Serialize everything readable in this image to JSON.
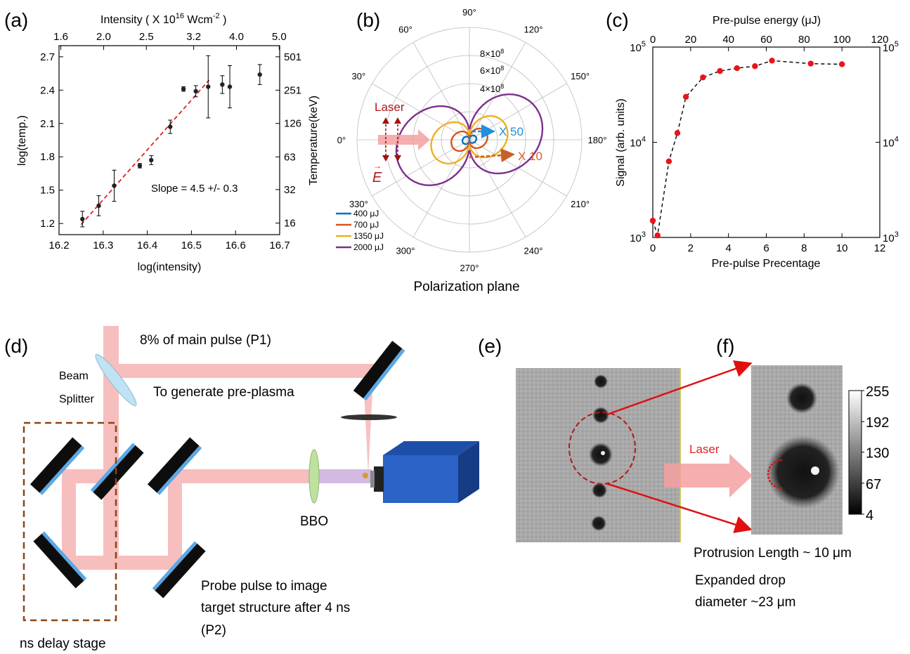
{
  "panels": {
    "a": {
      "label": "(a)",
      "top_title": "Intensity ( X 10",
      "top_title_exp": "16",
      "top_title_unit": " Wcm",
      "top_title_unit_exp": "-2",
      "top_title_close": " )",
      "xlabel": "log(intensity)",
      "ylabel": "log(temp.)",
      "right_ylabel": "Temperature(keV)",
      "annotation": "Slope = 4.5 +/- 0.3",
      "x_ticks": [
        "16.2",
        "16.3",
        "16.4",
        "16.5",
        "16.6",
        "16.7"
      ],
      "y_ticks": [
        "1.2",
        "1.5",
        "1.8",
        "2.1",
        "2.4",
        "2.7"
      ],
      "top_ticks": [
        "1.6",
        "2.0",
        "2.5",
        "3.2",
        "4.0",
        "5.0"
      ],
      "right_ticks": [
        "16",
        "32",
        "63",
        "126",
        "251",
        "501"
      ]
    },
    "b": {
      "label": "(b)",
      "caption": "Polarization plane",
      "angles": [
        "270°",
        "240°",
        "210°",
        "180°",
        "150°",
        "120°",
        "90°",
        "60°",
        "30°",
        "0°",
        "330°",
        "300°"
      ],
      "radial_labels": [
        "8×10",
        "6×10",
        "4×10"
      ],
      "radial_exp": "8",
      "laser_label": "Laser",
      "efield_label": "E",
      "x50": "X 50",
      "x10": "X 10",
      "legend": [
        "400 μJ",
        "700 μJ",
        "1350 μJ",
        "2000 μJ"
      ],
      "colors": [
        "#0072bd",
        "#d95319",
        "#edb120",
        "#7e2f8e"
      ]
    },
    "c": {
      "label": "(c)",
      "top_title": "Pre-pulse energy (μJ)",
      "xlabel": "Pre-pulse Precentage",
      "ylabel": "Signal (arb. units)",
      "x_ticks": [
        "0",
        "2",
        "4",
        "6",
        "8",
        "10",
        "12"
      ],
      "top_ticks": [
        "0",
        "20",
        "40",
        "60",
        "80",
        "100",
        "120"
      ],
      "y_base": "10",
      "y_exps": [
        "3",
        "4",
        "5"
      ]
    },
    "d": {
      "label": "(d)",
      "p1_text": "8% of main pulse (P1)",
      "beam_splitter_1": "Beam",
      "beam_splitter_2": "Splitter",
      "preplasma_text": "To generate pre-plasma",
      "bbo": "BBO",
      "probe_1": "Probe pulse to image",
      "probe_2": "target structure after 4 ns",
      "probe_3": "(P2)",
      "delay_stage": "ns delay stage"
    },
    "e": {
      "label": "(e)"
    },
    "f": {
      "label": "(f)",
      "laser": "Laser",
      "colorbar_ticks": [
        "255",
        "192",
        "130",
        "67",
        "4"
      ],
      "protrusion": "Protrusion Length ~ 10 μm",
      "expanded_1": "Expanded drop",
      "expanded_2": "diameter ~23 μm"
    }
  },
  "chart_data": [
    {
      "type": "scatter",
      "panel": "a",
      "xlabel": "log(intensity)",
      "ylabel": "log(temp.)",
      "xlim": [
        16.2,
        16.7
      ],
      "ylim": [
        1.1,
        2.8
      ],
      "series": [
        {
          "x": [
            16.253,
            16.29,
            16.325,
            16.383,
            16.409,
            16.452,
            16.482,
            16.51,
            16.538,
            16.57,
            16.587,
            16.655
          ],
          "y": [
            1.24,
            1.36,
            1.54,
            1.72,
            1.77,
            2.07,
            2.41,
            2.39,
            2.43,
            2.45,
            2.43,
            2.54
          ],
          "err": [
            0.07,
            0.09,
            0.14,
            0.02,
            0.04,
            0.06,
            0.02,
            0.05,
            0.28,
            0.08,
            0.19,
            0.09
          ]
        }
      ],
      "fit": {
        "x": [
          16.25,
          16.54
        ],
        "y": [
          1.19,
          2.49
        ]
      }
    },
    {
      "type": "line",
      "panel": "c",
      "xlabel": "Pre-pulse Precentage",
      "ylabel": "Signal (arb. units)",
      "xlim": [
        0,
        12
      ],
      "ylim": [
        1000,
        100000
      ],
      "log_y": true,
      "x": [
        0,
        0.25,
        0.85,
        1.3,
        1.75,
        2.65,
        3.55,
        4.45,
        5.4,
        6.3,
        8.35,
        10
      ],
      "y": [
        1500,
        1050,
        6300,
        12500,
        30000,
        48000,
        56000,
        60000,
        63000,
        72000,
        67000,
        66000
      ]
    }
  ]
}
